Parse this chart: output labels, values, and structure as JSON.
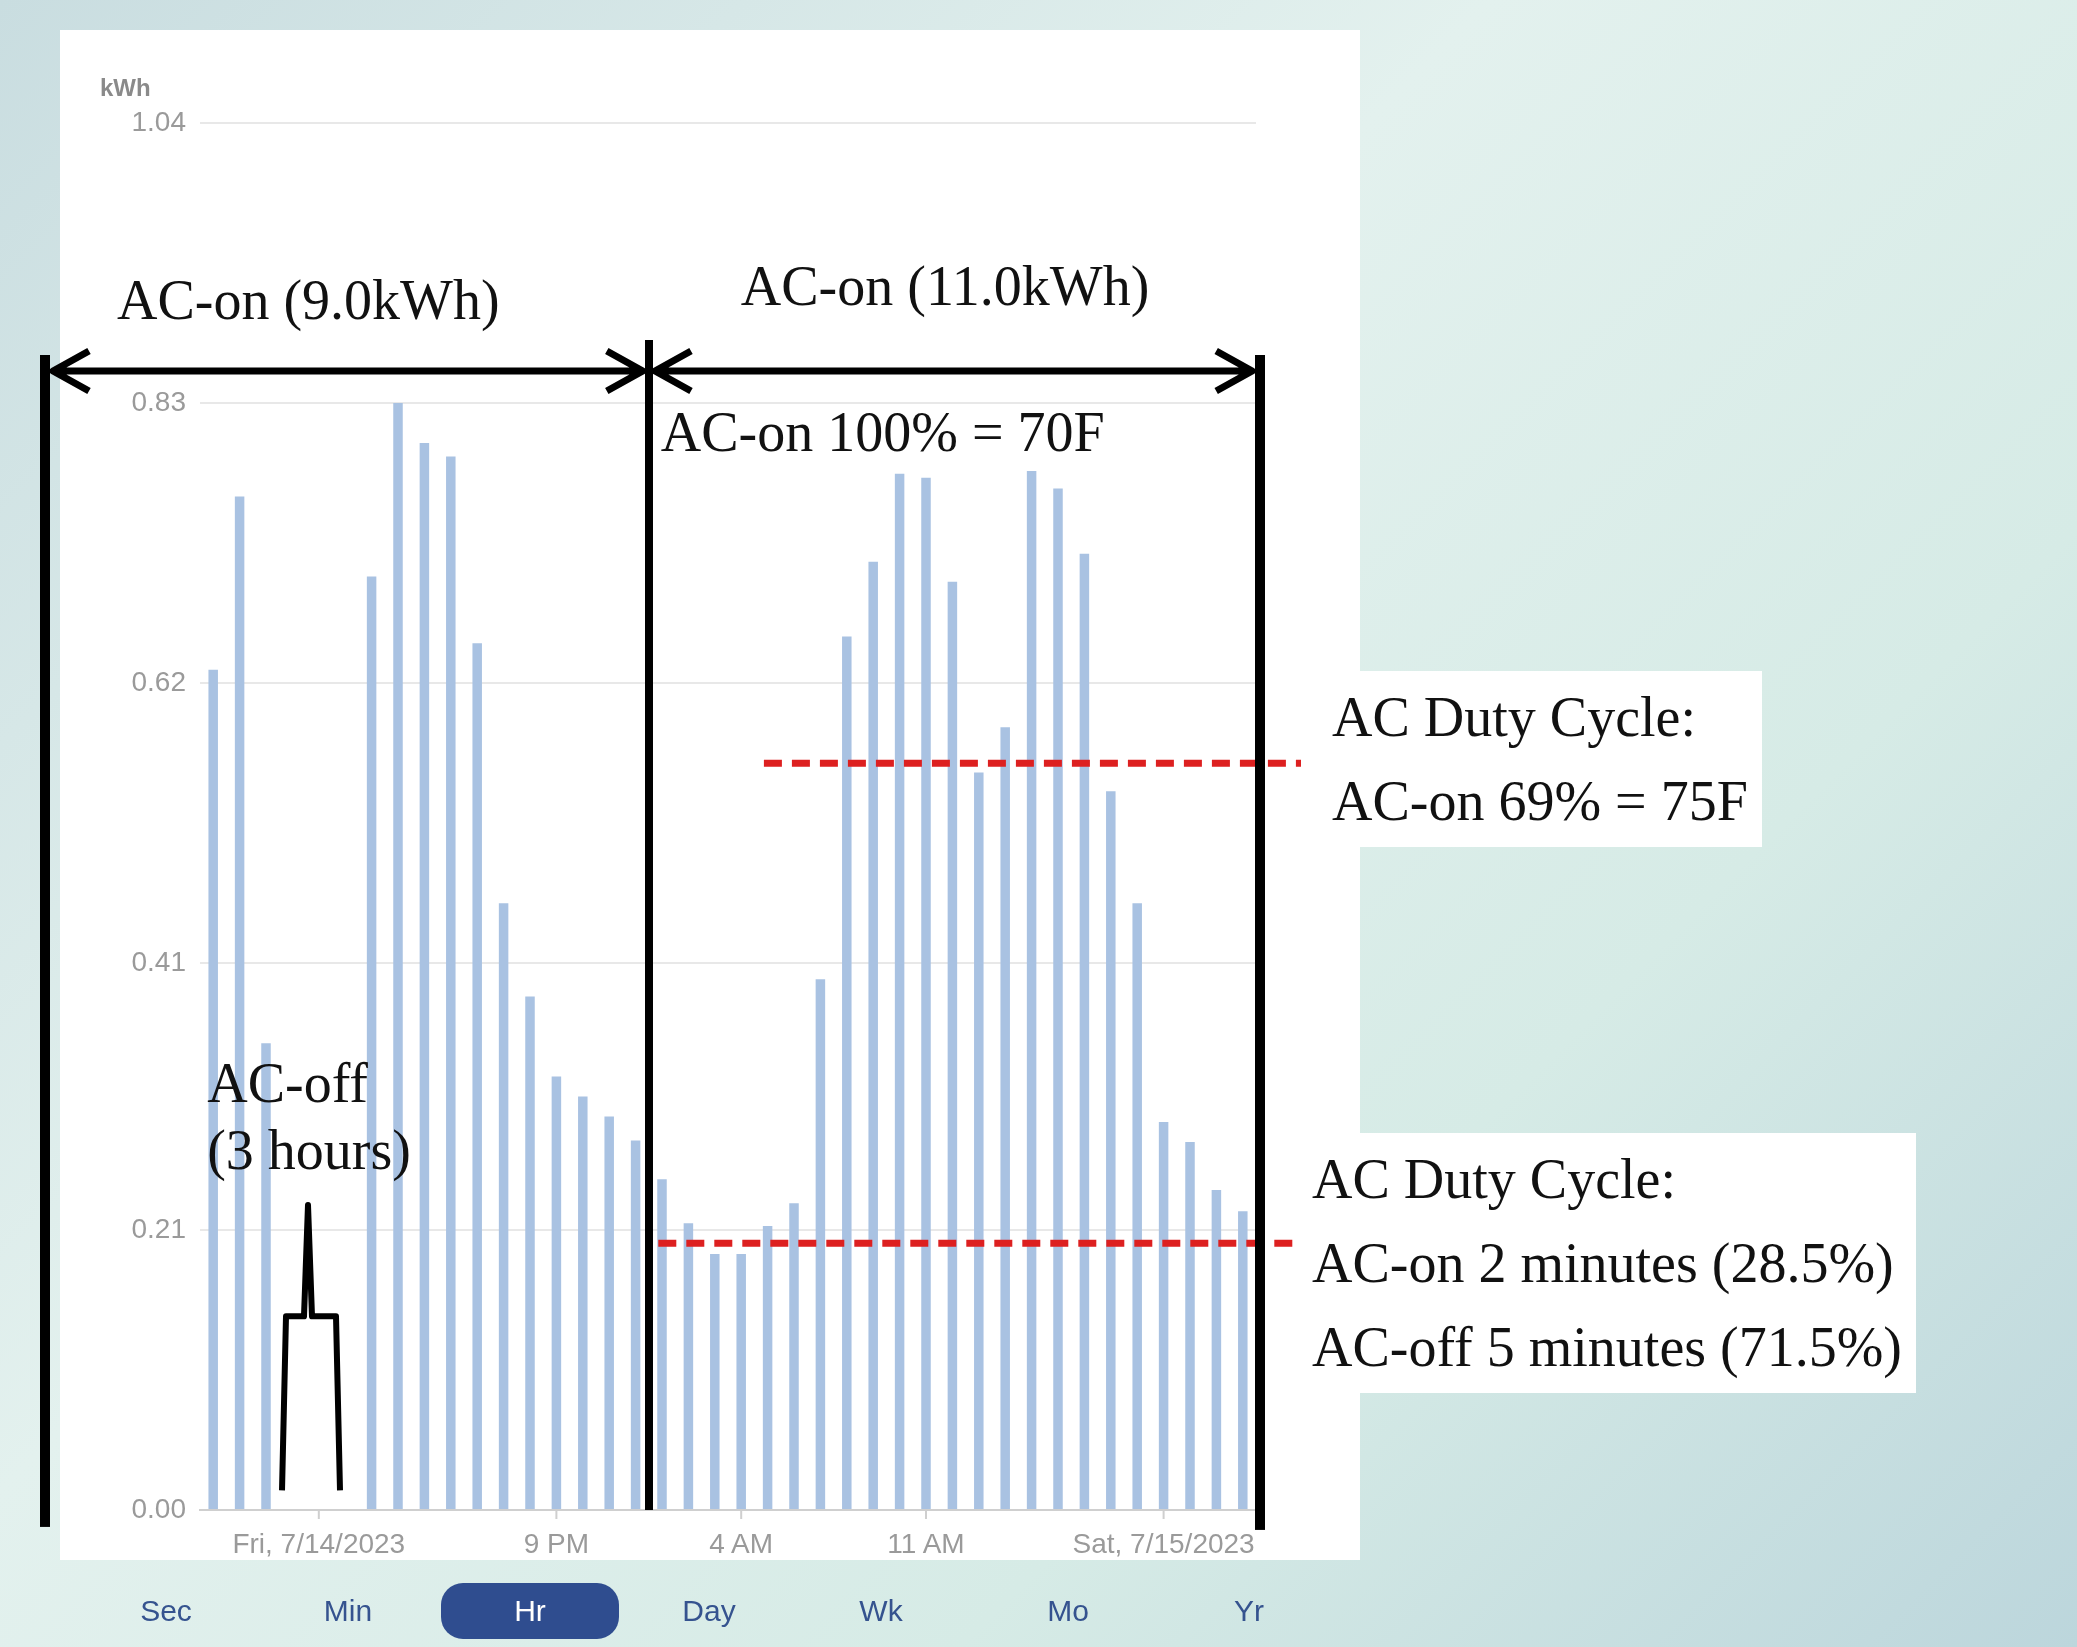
{
  "chart_data": {
    "type": "bar",
    "ylabel": "kWh",
    "categories": [
      null,
      null,
      null,
      null,
      "Fri, 7/14/2023",
      null,
      null,
      null,
      null,
      null,
      null,
      null,
      null,
      "9 PM",
      null,
      null,
      null,
      null,
      null,
      null,
      "4 AM",
      null,
      null,
      null,
      null,
      null,
      null,
      "11 AM",
      null,
      null,
      null,
      null,
      null,
      null,
      null,
      null,
      "Sat, 7/15/2023",
      null,
      null,
      null
    ],
    "values": [
      0.63,
      0.76,
      0.35,
      null,
      null,
      null,
      0.7,
      0.83,
      0.8,
      0.79,
      0.65,
      0.455,
      0.385,
      0.325,
      0.31,
      0.295,
      0.277,
      0.248,
      0.215,
      0.192,
      0.192,
      0.213,
      0.23,
      0.398,
      0.655,
      0.711,
      0.777,
      0.774,
      0.696,
      0.553,
      0.587,
      0.779,
      0.766,
      0.717,
      0.539,
      0.455,
      0.291,
      0.276,
      0.24,
      0.224
    ],
    "color": "#a9c2e2",
    "ylim": [
      0,
      1.04
    ],
    "yticks": [
      {
        "value": 0,
        "label": "0.00"
      },
      {
        "value": 0.21,
        "label": "0.21"
      },
      {
        "value": 0.41,
        "label": "0.41"
      },
      {
        "value": 0.62,
        "label": "0.62"
      },
      {
        "value": 0.83,
        "label": "0.83"
      },
      {
        "value": 1.04,
        "label": "1.04"
      }
    ],
    "grid": "y",
    "legend": false,
    "ref_lines": [
      {
        "axis": "y",
        "value": 0.56,
        "color": "#dd2020",
        "line_style": "dashed"
      },
      {
        "axis": "y",
        "value": 0.2,
        "color": "#dd2020",
        "line_style": "dashed"
      }
    ],
    "annotations": [
      "AC-on (9.0kWh)",
      "AC-on (11.0kWh)",
      "AC-on 100%  = 70F",
      "AC-off (3 hours)",
      "Sec",
      "Min",
      "Hr",
      "Day",
      "Wk",
      "Mo",
      "Yr",
      "AC Duty Cycle:\nAC-on 69% = 75F",
      "AC Duty Cycle:\nAC-on 2 minutes (28.5%)\nAC-off 5 minutes (71.5%)"
    ]
  }
}
